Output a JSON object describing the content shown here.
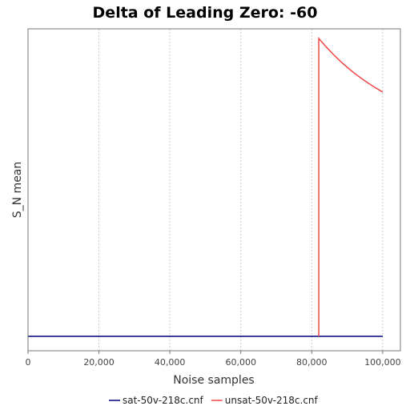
{
  "chart_data": {
    "type": "line",
    "title": "Delta of Leading Zero: -60",
    "xlabel": "Noise samples",
    "ylabel": "S_N mean",
    "xlim": [
      0,
      105000
    ],
    "ylim": [
      0,
      1
    ],
    "x_ticks": [
      0,
      20000,
      40000,
      60000,
      80000,
      100000
    ],
    "x_tick_labels": [
      "0",
      "20,000",
      "40,000",
      "60,000",
      "80,000",
      "100,000"
    ],
    "grid": true,
    "legend_position": "bottom",
    "series": [
      {
        "name": "sat-50v-218c.cnf",
        "color": "#00007f",
        "x": [
          0,
          100000
        ],
        "y": [
          0.05,
          0.05
        ]
      },
      {
        "name": "unsat-50v-218c.cnf",
        "color": "#f04848",
        "x": [
          82000,
          82000,
          84000,
          86000,
          88000,
          90000,
          92000,
          94000,
          96000,
          98000,
          100000
        ],
        "y": [
          0.05,
          0.96,
          0.935,
          0.912,
          0.891,
          0.872,
          0.854,
          0.838,
          0.823,
          0.809,
          0.796
        ]
      }
    ]
  }
}
